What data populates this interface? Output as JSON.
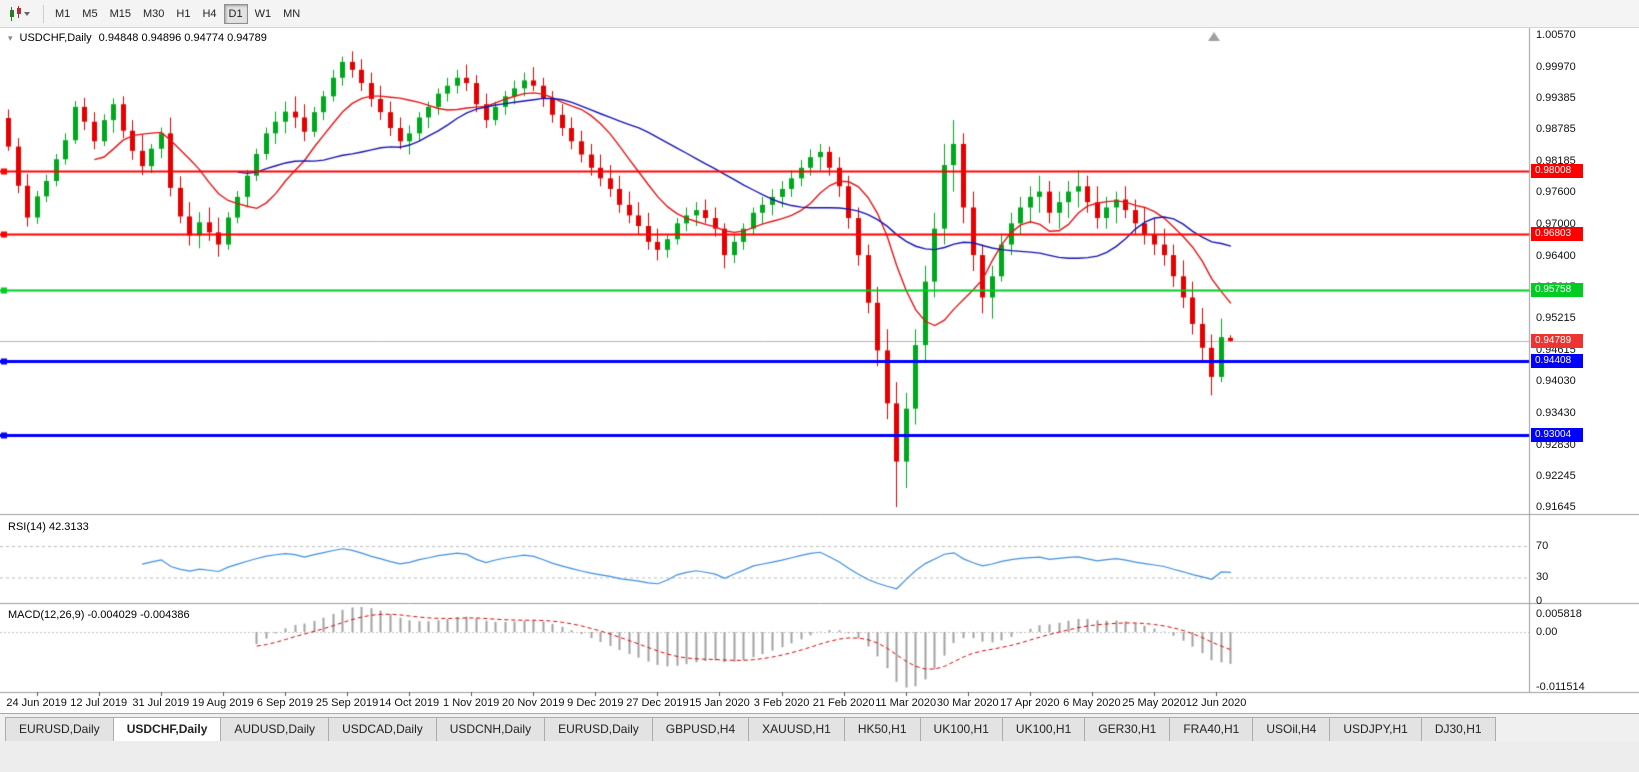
{
  "toolbar": {
    "timeframes": [
      "M1",
      "M5",
      "M15",
      "M30",
      "H1",
      "H4",
      "D1",
      "W1",
      "MN"
    ],
    "selected_timeframe": "D1"
  },
  "chart": {
    "symbol": "USDCHF,Daily",
    "ohlc_readout": "0.94848 0.94896 0.94774 0.94789",
    "price_axis_labels": [
      "1.00570",
      "0.99970",
      "0.99385",
      "0.98785",
      "0.98185",
      "0.97600",
      "0.97000",
      "0.96400",
      "0.95815",
      "0.95215",
      "0.94615",
      "0.94030",
      "0.93430",
      "0.92830",
      "0.92245",
      "0.91645"
    ],
    "horizontal_lines": [
      {
        "price": 0.98008,
        "label": "0.98008",
        "color": "#ff0000",
        "width": 2
      },
      {
        "price": 0.96803,
        "label": "0.96803",
        "color": "#ff0000",
        "width": 2
      },
      {
        "price": 0.95758,
        "label": "0.95758",
        "color": "#00cc22",
        "width": 2
      },
      {
        "price": 0.94408,
        "label": "0.94408",
        "color": "#0000ff",
        "width": 3
      },
      {
        "price": 0.93004,
        "label": "0.93004",
        "color": "#0000ff",
        "width": 3
      }
    ],
    "current_price": {
      "price": 0.94789,
      "label": "0.94789",
      "badge_color": "#ee3333",
      "line_color": "#b4b4b4"
    },
    "date_axis": [
      "24 Jun 2019",
      "12 Jul 2019",
      "31 Jul 2019",
      "19 Aug 2019",
      "6 Sep 2019",
      "25 Sep 2019",
      "14 Oct 2019",
      "1 Nov 2019",
      "20 Nov 2019",
      "9 Dec 2019",
      "27 Dec 2019",
      "15 Jan 2020",
      "3 Feb 2020",
      "21 Feb 2020",
      "11 Mar 2020",
      "30 Mar 2020",
      "17 Apr 2020",
      "6 May 2020",
      "25 May 2020",
      "12 Jun 2020"
    ]
  },
  "indicators": {
    "rsi": {
      "label": "RSI(14) 42.3133",
      "period": 14,
      "levels": [
        "70",
        "30",
        "0"
      ],
      "line_color": "#3f8fdf"
    },
    "macd": {
      "label": "MACD(12,26,9) -0.004029 -0.004386",
      "params": [
        12,
        26,
        9
      ],
      "axis_labels": [
        "0.005818",
        "0.00",
        "-0.011514"
      ],
      "histogram_color": "#a2a2a2",
      "signal_color": "#e00000"
    }
  },
  "colors": {
    "candle_up": "#00a81e",
    "candle_down": "#e60000",
    "background": "#ffffff"
  },
  "tabs": {
    "active_index": 1,
    "items": [
      "EURUSD,Daily",
      "USDCHF,Daily",
      "AUDUSD,Daily",
      "USDCAD,Daily",
      "USDCNH,Daily",
      "EURUSD,Daily",
      "GBPUSD,H4",
      "XAUUSD,H1",
      "HK50,H1",
      "UK100,H1",
      "UK100,H1",
      "GER30,H1",
      "FRA40,H1",
      "USOil,H4",
      "USDJPY,H1",
      "DJ30,H1"
    ],
    "active_label": "USDCHF,Daily"
  },
  "chart_data": {
    "type": "candlestick",
    "symbol": "USDCHF",
    "timeframe": "Daily",
    "y_range": [
      0.9152,
      1.007
    ],
    "date_tick_candle_indices": [
      3,
      9.5,
      16,
      22.5,
      29,
      35.5,
      42,
      48.5,
      55,
      61.5,
      68,
      74.5,
      81,
      87.5,
      94,
      100.5,
      107,
      113.5,
      120,
      126.5
    ],
    "overlays": [
      {
        "name": "ma-fast",
        "type": "sma",
        "period": 10,
        "color": "#e41414"
      },
      {
        "name": "ma-slow",
        "type": "sma",
        "period": 25,
        "color": "#1414b4"
      }
    ],
    "ohlc": [
      [
        0.99,
        0.9916,
        0.9838,
        0.9846
      ],
      [
        0.9846,
        0.9862,
        0.9758,
        0.9772
      ],
      [
        0.9772,
        0.9794,
        0.9695,
        0.9712
      ],
      [
        0.9712,
        0.9762,
        0.97,
        0.9752
      ],
      [
        0.9752,
        0.9793,
        0.9741,
        0.9781
      ],
      [
        0.9781,
        0.9832,
        0.9771,
        0.9822
      ],
      [
        0.9822,
        0.9871,
        0.9812,
        0.9858
      ],
      [
        0.9858,
        0.9932,
        0.9851,
        0.9921
      ],
      [
        0.9921,
        0.9938,
        0.9877,
        0.9893
      ],
      [
        0.9893,
        0.9911,
        0.9841,
        0.9856
      ],
      [
        0.9856,
        0.9907,
        0.9847,
        0.9896
      ],
      [
        0.9896,
        0.9937,
        0.9872,
        0.9926
      ],
      [
        0.9926,
        0.9941,
        0.9862,
        0.9876
      ],
      [
        0.9876,
        0.9896,
        0.9821,
        0.9838
      ],
      [
        0.9838,
        0.9869,
        0.9792,
        0.9809
      ],
      [
        0.9809,
        0.9851,
        0.9796,
        0.9842
      ],
      [
        0.9842,
        0.9882,
        0.9824,
        0.9871
      ],
      [
        0.9871,
        0.9901,
        0.9752,
        0.9768
      ],
      [
        0.9768,
        0.979,
        0.9701,
        0.9714
      ],
      [
        0.9714,
        0.9741,
        0.9659,
        0.9678
      ],
      [
        0.9678,
        0.9722,
        0.9654,
        0.9703
      ],
      [
        0.9703,
        0.9731,
        0.9668,
        0.9684
      ],
      [
        0.9684,
        0.9712,
        0.9638,
        0.9661
      ],
      [
        0.9661,
        0.9722,
        0.9651,
        0.9712
      ],
      [
        0.9712,
        0.9762,
        0.9701,
        0.9751
      ],
      [
        0.9751,
        0.9802,
        0.9731,
        0.9791
      ],
      [
        0.9791,
        0.9842,
        0.9781,
        0.9832
      ],
      [
        0.9832,
        0.9882,
        0.9821,
        0.9871
      ],
      [
        0.9871,
        0.9912,
        0.9851,
        0.9893
      ],
      [
        0.9893,
        0.9931,
        0.9871,
        0.9912
      ],
      [
        0.9912,
        0.9941,
        0.9881,
        0.9901
      ],
      [
        0.9901,
        0.9926,
        0.9856,
        0.9874
      ],
      [
        0.9874,
        0.9921,
        0.9864,
        0.9911
      ],
      [
        0.9911,
        0.9951,
        0.9896,
        0.9941
      ],
      [
        0.9941,
        0.9991,
        0.9931,
        0.9976
      ],
      [
        0.9976,
        1.0016,
        0.9961,
        1.0006
      ],
      [
        1.0006,
        1.0026,
        0.9976,
        0.9991
      ],
      [
        0.9991,
        1.0011,
        0.9951,
        0.9966
      ],
      [
        0.9966,
        0.9986,
        0.9921,
        0.9936
      ],
      [
        0.9936,
        0.9961,
        0.9896,
        0.9911
      ],
      [
        0.9911,
        0.9931,
        0.9866,
        0.9881
      ],
      [
        0.9881,
        0.9901,
        0.9841,
        0.9856
      ],
      [
        0.9856,
        0.9886,
        0.9831,
        0.9871
      ],
      [
        0.9871,
        0.9911,
        0.9856,
        0.9901
      ],
      [
        0.9901,
        0.9931,
        0.9881,
        0.9921
      ],
      [
        0.9921,
        0.9956,
        0.9906,
        0.9946
      ],
      [
        0.9946,
        0.9976,
        0.9931,
        0.9961
      ],
      [
        0.9961,
        0.9991,
        0.9946,
        0.9976
      ],
      [
        0.9976,
        1.0001,
        0.9951,
        0.9966
      ],
      [
        0.9966,
        0.9981,
        0.9911,
        0.9926
      ],
      [
        0.9926,
        0.9946,
        0.9881,
        0.9896
      ],
      [
        0.9896,
        0.9931,
        0.9886,
        0.9921
      ],
      [
        0.9921,
        0.9951,
        0.9906,
        0.9941
      ],
      [
        0.9941,
        0.9971,
        0.9926,
        0.9956
      ],
      [
        0.9956,
        0.9986,
        0.9941,
        0.9971
      ],
      [
        0.9971,
        0.9996,
        0.9951,
        0.9961
      ],
      [
        0.9961,
        0.9976,
        0.9921,
        0.9936
      ],
      [
        0.9936,
        0.9951,
        0.9891,
        0.9906
      ],
      [
        0.9906,
        0.9926,
        0.9866,
        0.9881
      ],
      [
        0.9881,
        0.9901,
        0.9841,
        0.9856
      ],
      [
        0.9856,
        0.9876,
        0.9816,
        0.9831
      ],
      [
        0.9831,
        0.9851,
        0.9791,
        0.9806
      ],
      [
        0.9806,
        0.9831,
        0.9771,
        0.9786
      ],
      [
        0.9786,
        0.9811,
        0.9751,
        0.9766
      ],
      [
        0.9766,
        0.9791,
        0.9721,
        0.9736
      ],
      [
        0.9736,
        0.9761,
        0.9701,
        0.9716
      ],
      [
        0.9716,
        0.9741,
        0.9681,
        0.9696
      ],
      [
        0.9696,
        0.9721,
        0.9651,
        0.9666
      ],
      [
        0.9666,
        0.9691,
        0.9631,
        0.9651
      ],
      [
        0.9651,
        0.9681,
        0.9636,
        0.9671
      ],
      [
        0.9671,
        0.9711,
        0.9661,
        0.9701
      ],
      [
        0.9701,
        0.9731,
        0.9686,
        0.9716
      ],
      [
        0.9716,
        0.9741,
        0.9696,
        0.9726
      ],
      [
        0.9726,
        0.9746,
        0.9701,
        0.9711
      ],
      [
        0.9711,
        0.9731,
        0.9676,
        0.9691
      ],
      [
        0.9691,
        0.9701,
        0.9616,
        0.9641
      ],
      [
        0.9641,
        0.9681,
        0.9626,
        0.9666
      ],
      [
        0.9666,
        0.9701,
        0.9651,
        0.9691
      ],
      [
        0.9691,
        0.9731,
        0.9681,
        0.9721
      ],
      [
        0.9721,
        0.9751,
        0.9701,
        0.9736
      ],
      [
        0.9736,
        0.9766,
        0.9716,
        0.9751
      ],
      [
        0.9751,
        0.9781,
        0.9731,
        0.9766
      ],
      [
        0.9766,
        0.9801,
        0.9751,
        0.9786
      ],
      [
        0.9786,
        0.9821,
        0.9771,
        0.9806
      ],
      [
        0.9806,
        0.9841,
        0.9791,
        0.9826
      ],
      [
        0.9826,
        0.9851,
        0.9801,
        0.9836
      ],
      [
        0.9836,
        0.9846,
        0.9791,
        0.9806
      ],
      [
        0.9806,
        0.9826,
        0.9751,
        0.9771
      ],
      [
        0.9771,
        0.9791,
        0.9691,
        0.9711
      ],
      [
        0.9711,
        0.9731,
        0.9621,
        0.9641
      ],
      [
        0.9641,
        0.9661,
        0.9531,
        0.9551
      ],
      [
        0.9551,
        0.9581,
        0.9431,
        0.9461
      ],
      [
        0.9461,
        0.9501,
        0.9331,
        0.9361
      ],
      [
        0.9361,
        0.9401,
        0.9165,
        0.9251
      ],
      [
        0.9251,
        0.9381,
        0.9201,
        0.9351
      ],
      [
        0.9351,
        0.9501,
        0.9321,
        0.9471
      ],
      [
        0.9471,
        0.9621,
        0.9441,
        0.9591
      ],
      [
        0.9591,
        0.9721,
        0.9561,
        0.9691
      ],
      [
        0.9691,
        0.9851,
        0.9661,
        0.9811
      ],
      [
        0.9811,
        0.9896,
        0.9761,
        0.9851
      ],
      [
        0.9851,
        0.9871,
        0.9701,
        0.9731
      ],
      [
        0.9731,
        0.9761,
        0.9611,
        0.9641
      ],
      [
        0.9641,
        0.9661,
        0.9531,
        0.9561
      ],
      [
        0.9561,
        0.9621,
        0.9521,
        0.9601
      ],
      [
        0.9601,
        0.9681,
        0.9591,
        0.9661
      ],
      [
        0.9661,
        0.9721,
        0.9641,
        0.9701
      ],
      [
        0.9701,
        0.9751,
        0.9681,
        0.9731
      ],
      [
        0.9731,
        0.9771,
        0.9701,
        0.9751
      ],
      [
        0.9751,
        0.9791,
        0.9721,
        0.9761
      ],
      [
        0.9761,
        0.9781,
        0.9701,
        0.9721
      ],
      [
        0.9721,
        0.9761,
        0.9691,
        0.9741
      ],
      [
        0.9741,
        0.9781,
        0.9711,
        0.9761
      ],
      [
        0.9761,
        0.9801,
        0.9731,
        0.9771
      ],
      [
        0.9771,
        0.9791,
        0.9721,
        0.9741
      ],
      [
        0.9741,
        0.9771,
        0.9691,
        0.9711
      ],
      [
        0.9711,
        0.9751,
        0.9691,
        0.9731
      ],
      [
        0.9731,
        0.9761,
        0.9701,
        0.9746
      ],
      [
        0.9746,
        0.9771,
        0.9711,
        0.9726
      ],
      [
        0.9726,
        0.9746,
        0.9681,
        0.9701
      ],
      [
        0.9701,
        0.9731,
        0.9661,
        0.9681
      ],
      [
        0.9681,
        0.9711,
        0.9641,
        0.9661
      ],
      [
        0.9661,
        0.9691,
        0.9621,
        0.9641
      ],
      [
        0.9641,
        0.9661,
        0.9581,
        0.9601
      ],
      [
        0.9601,
        0.9631,
        0.9541,
        0.9561
      ],
      [
        0.9561,
        0.9591,
        0.9491,
        0.9511
      ],
      [
        0.9511,
        0.9541,
        0.9441,
        0.9466
      ],
      [
        0.9466,
        0.9491,
        0.9376,
        0.9411
      ],
      [
        0.9411,
        0.9521,
        0.9401,
        0.9486
      ],
      [
        0.94848,
        0.94896,
        0.94774,
        0.94789
      ]
    ]
  }
}
